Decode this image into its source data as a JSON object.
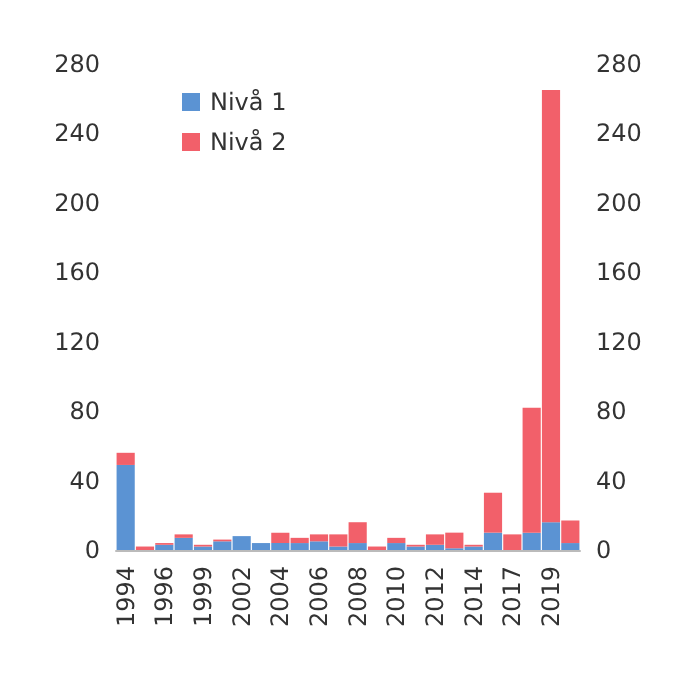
{
  "chart_data": {
    "type": "bar",
    "stacked": true,
    "categories": [
      "1994",
      null,
      "1996",
      null,
      "1999",
      null,
      "2002",
      null,
      "2004",
      null,
      "2006",
      null,
      "2008",
      null,
      "2010",
      null,
      "2012",
      null,
      "2014",
      null,
      "2017",
      null,
      "2019",
      null
    ],
    "series": [
      {
        "name": "Nivå 1",
        "color": "#5b93d3",
        "values": [
          49,
          0,
          3,
          7,
          2,
          5,
          8,
          4,
          4,
          4,
          5,
          2,
          4,
          0,
          4,
          2,
          3,
          1,
          2,
          10,
          0,
          10,
          16,
          4
        ]
      },
      {
        "name": "Nivå 2",
        "color": "#f2606a",
        "values": [
          7,
          2,
          1,
          2,
          1,
          1,
          0,
          0,
          6,
          3,
          4,
          7,
          12,
          2,
          3,
          1,
          6,
          9,
          1,
          23,
          9,
          72,
          249,
          13
        ]
      }
    ],
    "ylim": [
      0,
      280
    ],
    "yticks": [
      0,
      40,
      80,
      120,
      160,
      200,
      240,
      280
    ],
    "y2lim": [
      0,
      280
    ],
    "y2ticks": [
      0,
      40,
      80,
      120,
      160,
      200,
      240,
      280
    ],
    "grid": false,
    "legend": "top left"
  }
}
